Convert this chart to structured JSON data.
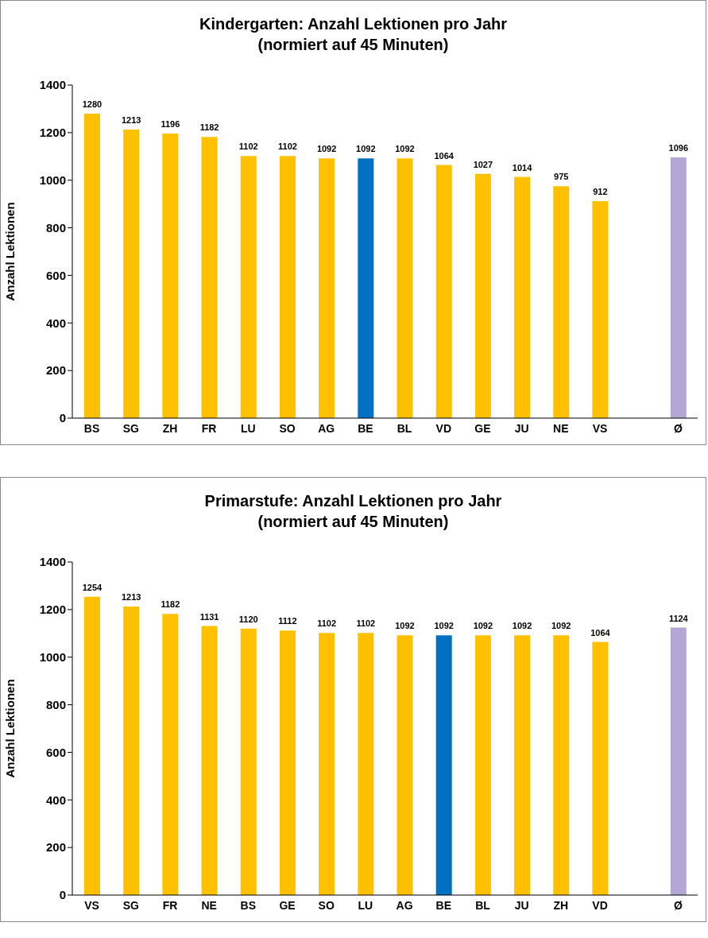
{
  "chart_data": [
    {
      "type": "bar",
      "title": "Kindergarten: Anzahl Lektionen pro Jahr\n(normiert auf 45 Minuten)",
      "ylabel": "Anzahl Lektionen",
      "categories": [
        "BS",
        "SG",
        "ZH",
        "FR",
        "LU",
        "SO",
        "AG",
        "BE",
        "BL",
        "VD",
        "GE",
        "JU",
        "NE",
        "VS",
        null,
        "Ø"
      ],
      "values": [
        1280,
        1213,
        1196,
        1182,
        1102,
        1102,
        1092,
        1092,
        1092,
        1064,
        1027,
        1014,
        975,
        912,
        null,
        1096
      ],
      "colors": [
        "#ffc000",
        "#ffc000",
        "#ffc000",
        "#ffc000",
        "#ffc000",
        "#ffc000",
        "#ffc000",
        "#0070c0",
        "#ffc000",
        "#ffc000",
        "#ffc000",
        "#ffc000",
        "#ffc000",
        "#ffc000",
        "#ffc000",
        "#b4a7d6"
      ],
      "ylim": [
        0,
        1400
      ],
      "yticks": [
        0,
        200,
        400,
        600,
        800,
        1000,
        1200,
        1400
      ],
      "grid": false,
      "legend": false,
      "data_labels": true
    },
    {
      "type": "bar",
      "title": "Primarstufe: Anzahl Lektionen pro Jahr\n(normiert auf 45 Minuten)",
      "ylabel": "Anzahl Lektionen",
      "categories": [
        "VS",
        "SG",
        "FR",
        "NE",
        "BS",
        "GE",
        "SO",
        "LU",
        "AG",
        "BE",
        "BL",
        "JU",
        "ZH",
        "VD",
        null,
        "Ø"
      ],
      "values": [
        1254,
        1213,
        1182,
        1131,
        1120,
        1112,
        1102,
        1102,
        1092,
        1092,
        1092,
        1092,
        1092,
        1064,
        null,
        1124
      ],
      "colors": [
        "#ffc000",
        "#ffc000",
        "#ffc000",
        "#ffc000",
        "#ffc000",
        "#ffc000",
        "#ffc000",
        "#ffc000",
        "#ffc000",
        "#0070c0",
        "#ffc000",
        "#ffc000",
        "#ffc000",
        "#ffc000",
        "#ffc000",
        "#b4a7d6"
      ],
      "ylim": [
        0,
        1400
      ],
      "yticks": [
        0,
        200,
        400,
        600,
        800,
        1000,
        1200,
        1400
      ],
      "grid": false,
      "legend": false,
      "data_labels": true
    }
  ]
}
